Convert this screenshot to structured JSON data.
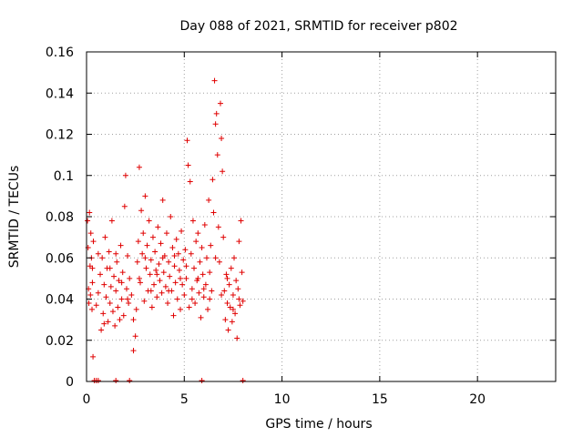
{
  "chart_data": {
    "type": "scatter",
    "title": "Day 088 of 2021, SRMTID for receiver p802",
    "xlabel": "GPS time / hours",
    "ylabel": "SRMTID / TECUs",
    "xlim": [
      0,
      24
    ],
    "ylim": [
      0,
      0.16
    ],
    "xticks": [
      0,
      5,
      10,
      15,
      20
    ],
    "yticks": [
      0,
      0.02,
      0.04,
      0.06,
      0.08,
      0.1,
      0.12,
      0.14,
      0.16
    ],
    "xtick_labels": [
      "0",
      "5",
      "10",
      "15",
      "20"
    ],
    "ytick_labels": [
      "0",
      "0.02",
      "0.04",
      "0.06",
      "0.08",
      "0.1",
      "0.12",
      "0.14",
      "0.16"
    ],
    "grid": true,
    "marker": "+",
    "color": "#e00000",
    "series": [
      {
        "name": "SRMTID",
        "points": [
          [
            0.05,
            0.078
          ],
          [
            0.08,
            0.065
          ],
          [
            0.1,
            0.045
          ],
          [
            0.12,
            0.038
          ],
          [
            0.15,
            0.082
          ],
          [
            0.18,
            0.056
          ],
          [
            0.2,
            0.042
          ],
          [
            0.22,
            0.072
          ],
          [
            0.25,
            0.06
          ],
          [
            0.28,
            0.035
          ],
          [
            0.3,
            0.048
          ],
          [
            0.33,
            0.012
          ],
          [
            0.35,
            0.068
          ],
          [
            0.5,
            0.037
          ],
          [
            0.6,
            0.043
          ],
          [
            0.7,
            0.052
          ],
          [
            0.75,
            0.025
          ],
          [
            0.8,
            0.06
          ],
          [
            0.85,
            0.033
          ],
          [
            0.9,
            0.047
          ],
          [
            0.95,
            0.07
          ],
          [
            1.0,
            0.041
          ],
          [
            1.05,
            0.055
          ],
          [
            1.1,
            0.029
          ],
          [
            1.15,
            0.063
          ],
          [
            1.2,
            0.038
          ],
          [
            1.25,
            0.046
          ],
          [
            1.3,
            0.078
          ],
          [
            1.35,
            0.034
          ],
          [
            1.4,
            0.051
          ],
          [
            1.45,
            0.027
          ],
          [
            1.5,
            0.044
          ],
          [
            1.55,
            0.058
          ],
          [
            1.6,
            0.036
          ],
          [
            1.65,
            0.049
          ],
          [
            1.7,
            0.03
          ],
          [
            1.75,
            0.066
          ],
          [
            1.8,
            0.04
          ],
          [
            1.85,
            0.053
          ],
          [
            1.9,
            0.032
          ],
          [
            1.95,
            0.085
          ],
          [
            2.0,
            0.1
          ],
          [
            2.05,
            0.045
          ],
          [
            2.1,
            0.061
          ],
          [
            2.15,
            0.038
          ],
          [
            2.2,
            0.05
          ],
          [
            2.3,
            0.042
          ],
          [
            2.4,
            0.015
          ],
          [
            2.5,
            0.022
          ],
          [
            2.55,
            0.035
          ],
          [
            2.6,
            0.058
          ],
          [
            2.65,
            0.068
          ],
          [
            2.7,
            0.104
          ],
          [
            2.75,
            0.048
          ],
          [
            2.8,
            0.083
          ],
          [
            2.85,
            0.062
          ],
          [
            2.9,
            0.072
          ],
          [
            2.95,
            0.039
          ],
          [
            3.0,
            0.09
          ],
          [
            3.05,
            0.055
          ],
          [
            3.1,
            0.066
          ],
          [
            3.15,
            0.044
          ],
          [
            3.2,
            0.078
          ],
          [
            3.25,
            0.052
          ],
          [
            3.3,
            0.059
          ],
          [
            3.35,
            0.036
          ],
          [
            3.4,
            0.07
          ],
          [
            3.45,
            0.047
          ],
          [
            3.5,
            0.063
          ],
          [
            3.55,
            0.054
          ],
          [
            3.6,
            0.041
          ],
          [
            3.65,
            0.075
          ],
          [
            3.7,
            0.057
          ],
          [
            3.75,
            0.049
          ],
          [
            3.8,
            0.067
          ],
          [
            3.85,
            0.043
          ],
          [
            3.9,
            0.088
          ],
          [
            3.95,
            0.053
          ],
          [
            4.0,
            0.061
          ],
          [
            4.05,
            0.046
          ],
          [
            4.1,
            0.072
          ],
          [
            4.15,
            0.038
          ],
          [
            4.2,
            0.058
          ],
          [
            4.25,
            0.051
          ],
          [
            4.3,
            0.08
          ],
          [
            4.35,
            0.044
          ],
          [
            4.4,
            0.065
          ],
          [
            4.45,
            0.032
          ],
          [
            4.5,
            0.056
          ],
          [
            4.55,
            0.048
          ],
          [
            4.6,
            0.069
          ],
          [
            4.65,
            0.04
          ],
          [
            4.7,
            0.062
          ],
          [
            4.75,
            0.054
          ],
          [
            4.8,
            0.035
          ],
          [
            4.85,
            0.073
          ],
          [
            4.9,
            0.047
          ],
          [
            4.95,
            0.059
          ],
          [
            5.0,
            0.042
          ],
          [
            5.05,
            0.064
          ],
          [
            5.1,
            0.05
          ],
          [
            5.15,
            0.117
          ],
          [
            5.2,
            0.105
          ],
          [
            5.25,
            0.036
          ],
          [
            5.3,
            0.097
          ],
          [
            5.35,
            0.062
          ],
          [
            5.4,
            0.045
          ],
          [
            5.45,
            0.078
          ],
          [
            5.5,
            0.055
          ],
          [
            5.55,
            0.038
          ],
          [
            5.6,
            0.068
          ],
          [
            5.65,
            0.049
          ],
          [
            5.7,
            0.072
          ],
          [
            5.75,
            0.043
          ],
          [
            5.8,
            0.058
          ],
          [
            5.85,
            0.031
          ],
          [
            5.9,
            0.065
          ],
          [
            5.95,
            0.052
          ],
          [
            6.0,
            0.041
          ],
          [
            6.05,
            0.076
          ],
          [
            6.1,
            0.047
          ],
          [
            6.15,
            0.06
          ],
          [
            6.2,
            0.035
          ],
          [
            6.25,
            0.088
          ],
          [
            6.3,
            0.053
          ],
          [
            6.35,
            0.066
          ],
          [
            6.4,
            0.044
          ],
          [
            6.45,
            0.098
          ],
          [
            6.5,
            0.082
          ],
          [
            6.55,
            0.146
          ],
          [
            6.6,
            0.125
          ],
          [
            6.65,
            0.13
          ],
          [
            6.7,
            0.11
          ],
          [
            6.75,
            0.075
          ],
          [
            6.8,
            0.058
          ],
          [
            6.85,
            0.135
          ],
          [
            6.9,
            0.118
          ],
          [
            6.95,
            0.102
          ],
          [
            7.0,
            0.07
          ],
          [
            7.05,
            0.044
          ],
          [
            7.1,
            0.03
          ],
          [
            7.15,
            0.052
          ],
          [
            7.2,
            0.038
          ],
          [
            7.25,
            0.025
          ],
          [
            7.3,
            0.047
          ],
          [
            7.35,
            0.036
          ],
          [
            7.4,
            0.055
          ],
          [
            7.45,
            0.029
          ],
          [
            7.5,
            0.042
          ],
          [
            7.55,
            0.06
          ],
          [
            7.6,
            0.033
          ],
          [
            7.65,
            0.049
          ],
          [
            7.7,
            0.021
          ],
          [
            7.75,
            0.045
          ],
          [
            7.8,
            0.068
          ],
          [
            7.85,
            0.037
          ],
          [
            7.9,
            0.078
          ],
          [
            7.95,
            0.053
          ],
          [
            8.0,
            0.039
          ],
          [
            0.3,
            0.055
          ],
          [
            0.6,
            0.062
          ],
          [
            0.9,
            0.028
          ],
          [
            1.2,
            0.055
          ],
          [
            1.5,
            0.062
          ],
          [
            1.8,
            0.048
          ],
          [
            2.1,
            0.04
          ],
          [
            2.4,
            0.03
          ],
          [
            2.7,
            0.05
          ],
          [
            3.0,
            0.06
          ],
          [
            3.3,
            0.044
          ],
          [
            3.6,
            0.052
          ],
          [
            3.9,
            0.06
          ],
          [
            4.2,
            0.044
          ],
          [
            4.5,
            0.061
          ],
          [
            4.8,
            0.05
          ],
          [
            5.1,
            0.056
          ],
          [
            5.4,
            0.04
          ],
          [
            5.7,
            0.05
          ],
          [
            6.0,
            0.045
          ],
          [
            6.3,
            0.04
          ],
          [
            6.6,
            0.06
          ],
          [
            6.9,
            0.042
          ],
          [
            7.2,
            0.05
          ],
          [
            7.5,
            0.035
          ],
          [
            7.8,
            0.04
          ]
        ]
      }
    ],
    "baseline_marks_x": [
      0.4,
      0.5,
      0.6,
      1.5,
      2.2,
      5.9,
      8.0
    ]
  }
}
